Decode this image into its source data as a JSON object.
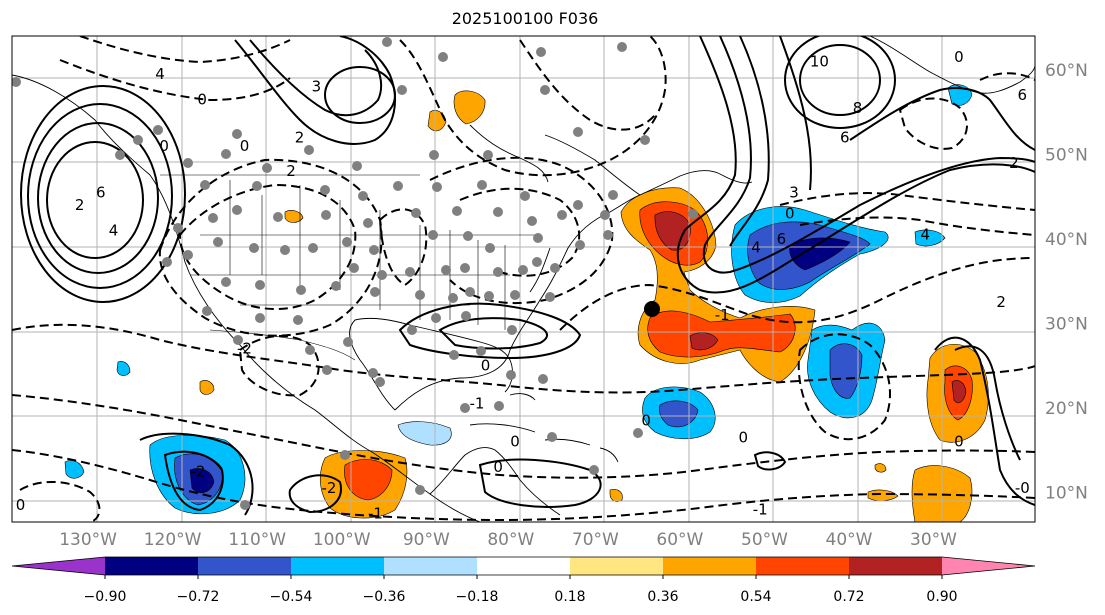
{
  "title": "2025100100 F036",
  "map": {
    "projection": "plate-carree",
    "lon_range": [
      -139,
      -18
    ],
    "lat_range": [
      6.5,
      64
    ],
    "gridlines": true,
    "longitude_labels": [
      "130°W",
      "120°W",
      "110°W",
      "100°W",
      "90°W",
      "80°W",
      "70°W",
      "60°W",
      "50°W",
      "40°W",
      "30°W"
    ],
    "longitude_values": [
      -130,
      -120,
      -110,
      -100,
      -90,
      -80,
      -70,
      -60,
      -50,
      -40,
      -30
    ],
    "latitude_labels": [
      "60°N",
      "50°N",
      "40°N",
      "30°N",
      "20°N",
      "10°N"
    ],
    "latitude_values": [
      60,
      50,
      40,
      30,
      20,
      10
    ],
    "marker_color": "#808080",
    "highlight_point": {
      "lon": -63.3,
      "lat": 31.7,
      "color": "#000000"
    }
  },
  "contour_labels": [
    {
      "text": "6",
      "lon": -128.5,
      "lat": 45.5
    },
    {
      "text": "4",
      "lon": -127,
      "lat": 41
    },
    {
      "text": "2",
      "lon": -131,
      "lat": 44
    },
    {
      "text": "0",
      "lon": -121,
      "lat": 51
    },
    {
      "text": "4",
      "lon": -121.5,
      "lat": 59.5
    },
    {
      "text": "0",
      "lon": -116.5,
      "lat": 56.5
    },
    {
      "text": "3",
      "lon": -103,
      "lat": 58
    },
    {
      "text": "2",
      "lon": -105,
      "lat": 52
    },
    {
      "text": "0",
      "lon": -111.5,
      "lat": 51
    },
    {
      "text": "2",
      "lon": -106,
      "lat": 48
    },
    {
      "text": "0",
      "lon": -83,
      "lat": 25
    },
    {
      "text": "-1",
      "lon": -84,
      "lat": 20.5
    },
    {
      "text": "0",
      "lon": -79.5,
      "lat": 16
    },
    {
      "text": "0",
      "lon": -81.5,
      "lat": 13
    },
    {
      "text": "0",
      "lon": -64,
      "lat": 18.5
    },
    {
      "text": "0",
      "lon": -47,
      "lat": 43
    },
    {
      "text": "6",
      "lon": -48,
      "lat": 40
    },
    {
      "text": "4",
      "lon": -51,
      "lat": 39
    },
    {
      "text": "3",
      "lon": -46.5,
      "lat": 45.5
    },
    {
      "text": "10",
      "lon": -43.5,
      "lat": 61
    },
    {
      "text": "8",
      "lon": -39,
      "lat": 55.5
    },
    {
      "text": "6",
      "lon": -40.5,
      "lat": 52
    },
    {
      "text": "0",
      "lon": -27,
      "lat": 61.5
    },
    {
      "text": "6",
      "lon": -19.5,
      "lat": 57
    },
    {
      "text": "4",
      "lon": -31,
      "lat": 40.5
    },
    {
      "text": "2",
      "lon": -20.5,
      "lat": 49
    },
    {
      "text": "-1",
      "lon": -55,
      "lat": 31
    },
    {
      "text": "0",
      "lon": -27,
      "lat": 16
    },
    {
      "text": "-0",
      "lon": -19.5,
      "lat": 10.5
    },
    {
      "text": "-2",
      "lon": -117,
      "lat": 12.5
    },
    {
      "text": "-2",
      "lon": -101.5,
      "lat": 10.5
    },
    {
      "text": "-1",
      "lon": -96,
      "lat": 7.5
    },
    {
      "text": "-1",
      "lon": -50.5,
      "lat": 8
    },
    {
      "text": "2",
      "lon": -22,
      "lat": 32.5
    },
    {
      "text": "0",
      "lon": -138,
      "lat": 8.5
    },
    {
      "text": "-2",
      "lon": -111.5,
      "lat": 27
    },
    {
      "text": "0",
      "lon": -52.5,
      "lat": 16.5
    }
  ],
  "colorbar": {
    "ticks": [
      "−0.90",
      "−0.72",
      "−0.54",
      "−0.36",
      "−0.18",
      "0.18",
      "0.36",
      "0.54",
      "0.72",
      "0.90"
    ],
    "colors": [
      "#9933cc",
      "#000080",
      "#3355cc",
      "#00bfff",
      "#b0e0ff",
      "#ffffff",
      "#ffe680",
      "#ffa500",
      "#ff4500",
      "#b22222",
      "#ff85b0"
    ],
    "extend": "both"
  },
  "shading_colors": {
    "strong_neg": "#3355cc",
    "mid_neg": "#00bfff",
    "deep_neg": "#000080",
    "weak_pos": "#ffa500",
    "mid_pos": "#ff4500",
    "strong_pos": "#b22222"
  }
}
